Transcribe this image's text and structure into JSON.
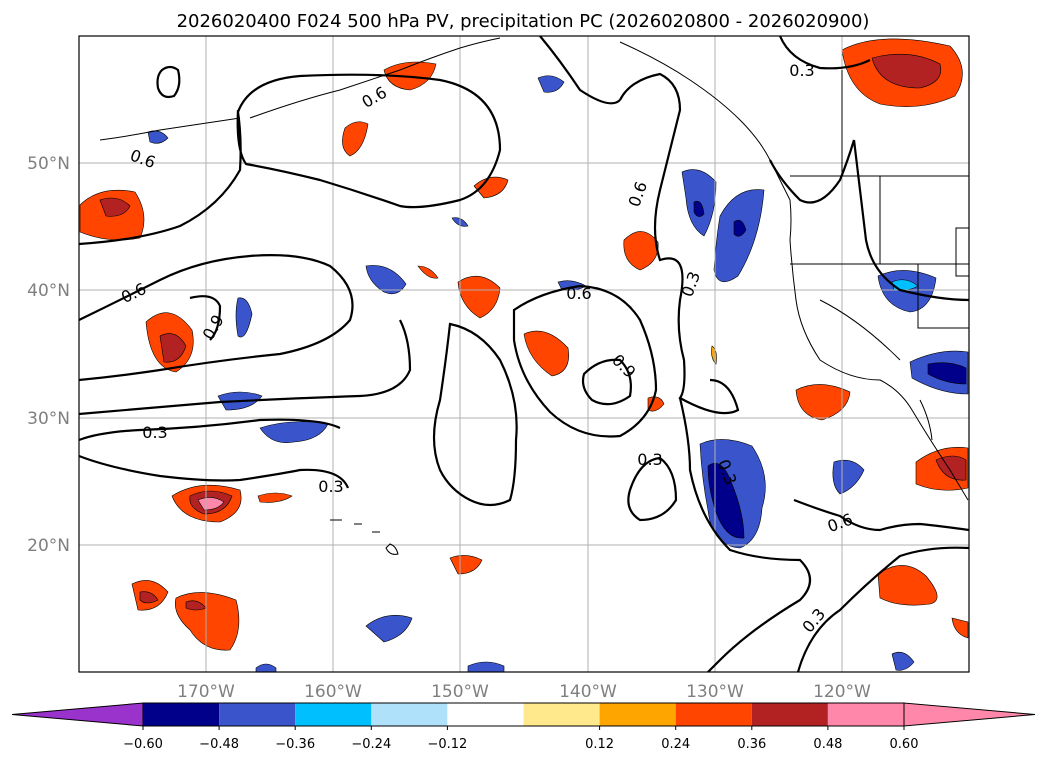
{
  "title": "2026020400 F024 500 hPa PV, precipitation PC (2026020800 - 2026020900)",
  "map": {
    "lon_range": [
      -180,
      -110
    ],
    "lat_range": [
      10,
      60
    ],
    "lon_ticks": [
      "170°W",
      "160°W",
      "150°W",
      "140°W",
      "130°W",
      "120°W"
    ],
    "lat_ticks": [
      "50°N",
      "40°N",
      "30°N",
      "20°N"
    ],
    "grid": true
  },
  "contour_labels": [
    "0.6",
    "0.6",
    "0.6",
    "0.6",
    "0.3",
    "0.9",
    "0.9",
    "0.6",
    "0.3",
    "0.3",
    "0.3",
    "0.3",
    "0.3",
    "0.6",
    "0.3"
  ],
  "colorbar": {
    "ticks": [
      "−0.60",
      "−0.48",
      "−0.36",
      "−0.24",
      "−0.12",
      "0.12",
      "0.24",
      "0.36",
      "0.48",
      "0.60"
    ],
    "colors": {
      "under": "#9933cc",
      "bins": [
        "#00008b",
        "#3a55cc",
        "#00bfff",
        "#afe1fa",
        "#ffffff",
        "#ffe98c",
        "#ffa500",
        "#ff4500",
        "#b22222",
        "#ff88aa"
      ],
      "over": "#ff88aa"
    }
  }
}
